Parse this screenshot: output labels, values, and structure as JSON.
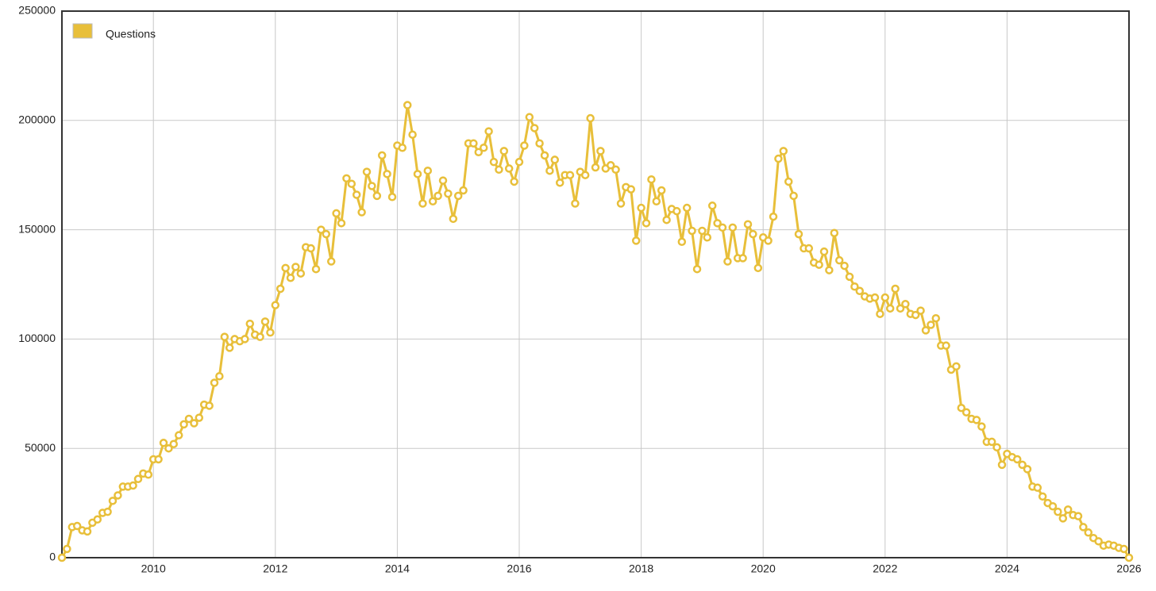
{
  "chart_data": {
    "type": "line",
    "x": [
      2008.5,
      2008.583,
      2008.667,
      2008.75,
      2008.833,
      2008.917,
      2009,
      2009.083,
      2009.167,
      2009.25,
      2009.333,
      2009.417,
      2009.5,
      2009.583,
      2009.667,
      2009.75,
      2009.833,
      2009.917,
      2010,
      2010.083,
      2010.167,
      2010.25,
      2010.333,
      2010.417,
      2010.5,
      2010.583,
      2010.667,
      2010.75,
      2010.833,
      2010.917,
      2011,
      2011.083,
      2011.167,
      2011.25,
      2011.333,
      2011.417,
      2011.5,
      2011.583,
      2011.667,
      2011.75,
      2011.833,
      2011.917,
      2012,
      2012.083,
      2012.167,
      2012.25,
      2012.333,
      2012.417,
      2012.5,
      2012.583,
      2012.667,
      2012.75,
      2012.833,
      2012.917,
      2013,
      2013.083,
      2013.167,
      2013.25,
      2013.333,
      2013.417,
      2013.5,
      2013.583,
      2013.667,
      2013.75,
      2013.833,
      2013.917,
      2014,
      2014.083,
      2014.167,
      2014.25,
      2014.333,
      2014.417,
      2014.5,
      2014.583,
      2014.667,
      2014.75,
      2014.833,
      2014.917,
      2015,
      2015.083,
      2015.167,
      2015.25,
      2015.333,
      2015.417,
      2015.5,
      2015.583,
      2015.667,
      2015.75,
      2015.833,
      2015.917,
      2016,
      2016.083,
      2016.167,
      2016.25,
      2016.333,
      2016.417,
      2016.5,
      2016.583,
      2016.667,
      2016.75,
      2016.833,
      2016.917,
      2017,
      2017.083,
      2017.167,
      2017.25,
      2017.333,
      2017.417,
      2017.5,
      2017.583,
      2017.667,
      2017.75,
      2017.833,
      2017.917,
      2018,
      2018.083,
      2018.167,
      2018.25,
      2018.333,
      2018.417,
      2018.5,
      2018.583,
      2018.667,
      2018.75,
      2018.833,
      2018.917,
      2019,
      2019.083,
      2019.167,
      2019.25,
      2019.333,
      2019.417,
      2019.5,
      2019.583,
      2019.667,
      2019.75,
      2019.833,
      2019.917,
      2020,
      2020.083,
      2020.167,
      2020.25,
      2020.333,
      2020.417,
      2020.5,
      2020.583,
      2020.667,
      2020.75,
      2020.833,
      2020.917,
      2021,
      2021.083,
      2021.167,
      2021.25,
      2021.333,
      2021.417,
      2021.5,
      2021.583,
      2021.667,
      2021.75,
      2021.833,
      2021.917,
      2022,
      2022.083,
      2022.167,
      2022.25,
      2022.333,
      2022.417,
      2022.5,
      2022.583,
      2022.667,
      2022.75,
      2022.833,
      2022.917,
      2023,
      2023.083,
      2023.167,
      2023.25,
      2023.333,
      2023.417,
      2023.5,
      2023.583,
      2023.667,
      2023.75,
      2023.833,
      2023.917,
      2024,
      2024.083,
      2024.167,
      2024.25,
      2024.333,
      2024.417,
      2024.5,
      2024.583,
      2024.667,
      2024.75,
      2024.833,
      2024.917,
      2025,
      2025.083,
      2025.167,
      2025.25,
      2025.333,
      2025.417,
      2025.5,
      2025.583,
      2025.667,
      2025.75,
      2025.833,
      2025.917,
      2026
    ],
    "series": [
      {
        "name": "Questions",
        "color": "#e8bf3a",
        "values": [
          0,
          4000,
          14000,
          14500,
          12500,
          12000,
          16000,
          17500,
          20500,
          21000,
          26000,
          28500,
          32500,
          32500,
          33000,
          36000,
          38500,
          38000,
          45000,
          45000,
          52500,
          50000,
          52000,
          56000,
          61000,
          63500,
          61500,
          64000,
          70000,
          69500,
          80000,
          83000,
          101000,
          96000,
          100000,
          99000,
          100000,
          107000,
          102000,
          101000,
          108000,
          103000,
          115500,
          123000,
          132500,
          128000,
          133000,
          130000,
          142000,
          141500,
          132000,
          150000,
          148000,
          135500,
          157500,
          153000,
          173500,
          171000,
          166000,
          158000,
          176500,
          170000,
          165500,
          184000,
          175500,
          165000,
          188500,
          187500,
          207000,
          193500,
          175500,
          162000,
          177000,
          163000,
          165500,
          172500,
          166500,
          155000,
          165500,
          168000,
          189500,
          189500,
          185500,
          187500,
          195000,
          181000,
          177500,
          186000,
          178000,
          172000,
          181000,
          188500,
          201500,
          196500,
          189500,
          184000,
          177000,
          182000,
          171500,
          175000,
          175000,
          162000,
          176500,
          175000,
          201000,
          178500,
          186000,
          178000,
          179500,
          177500,
          162000,
          169500,
          168500,
          145000,
          160000,
          153000,
          173000,
          163000,
          168000,
          154500,
          159500,
          158500,
          144500,
          160000,
          149500,
          132000,
          149500,
          146500,
          161000,
          153000,
          151000,
          135500,
          151000,
          137000,
          137000,
          152500,
          148000,
          132500,
          146500,
          145000,
          156000,
          182500,
          186000,
          172000,
          165500,
          148000,
          141500,
          141500,
          135000,
          134000,
          140000,
          131500,
          148500,
          136000,
          133500,
          128500,
          124000,
          122000,
          119500,
          118500,
          119000,
          111500,
          119000,
          114000,
          123000,
          114000,
          116000,
          111500,
          111000,
          113000,
          104000,
          106500,
          109500,
          97000,
          97000,
          86000,
          87500,
          68500,
          66500,
          63500,
          63000,
          60000,
          53000,
          53000,
          50500,
          42500,
          47500,
          46000,
          45000,
          42500,
          40500,
          32500,
          32000,
          28000,
          25000,
          23500,
          21000,
          18000,
          22000,
          19500,
          19000,
          14000,
          11500,
          9000,
          7500,
          5500,
          6000,
          5500,
          4500,
          4000,
          0
        ]
      }
    ],
    "xlim": [
      2008.5,
      2026
    ],
    "xticks": [
      2010,
      2012,
      2014,
      2016,
      2018,
      2020,
      2022,
      2024,
      2026
    ],
    "ylim": [
      0,
      250000
    ],
    "yticks": [
      0,
      50000,
      100000,
      150000,
      200000,
      250000
    ],
    "grid": true,
    "legend": "upper left"
  }
}
